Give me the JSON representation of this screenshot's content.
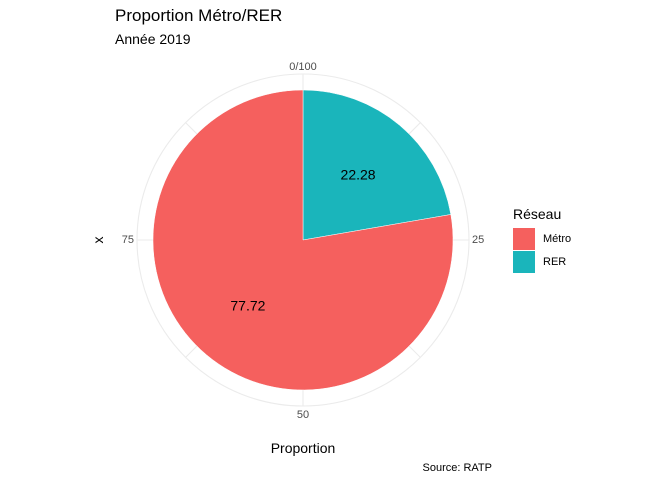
{
  "chart_data": {
    "type": "pie",
    "title": "Proportion Métro/RER",
    "subtitle": "Année 2019",
    "xlabel": "Proportion",
    "ylabel": "x",
    "caption": "Source: RATP",
    "categories": [
      "Métro",
      "RER"
    ],
    "values": [
      77.72,
      22.28
    ],
    "data_labels": [
      "77.72",
      "22.28"
    ],
    "colors": [
      "#F8766D",
      "#00BFC4"
    ],
    "slice_color": "#F5605E",
    "slice_color_2": "#1AB5BB",
    "theta_ticks": [
      {
        "value": 0,
        "label": "0/100"
      },
      {
        "value": 25,
        "label": "25"
      },
      {
        "value": 50,
        "label": "50"
      },
      {
        "value": 75,
        "label": "75"
      }
    ],
    "theta_range": [
      0,
      100
    ],
    "grid": true,
    "legend": {
      "title": "Réseau",
      "position": "right",
      "items": [
        "Métro",
        "RER"
      ]
    }
  }
}
